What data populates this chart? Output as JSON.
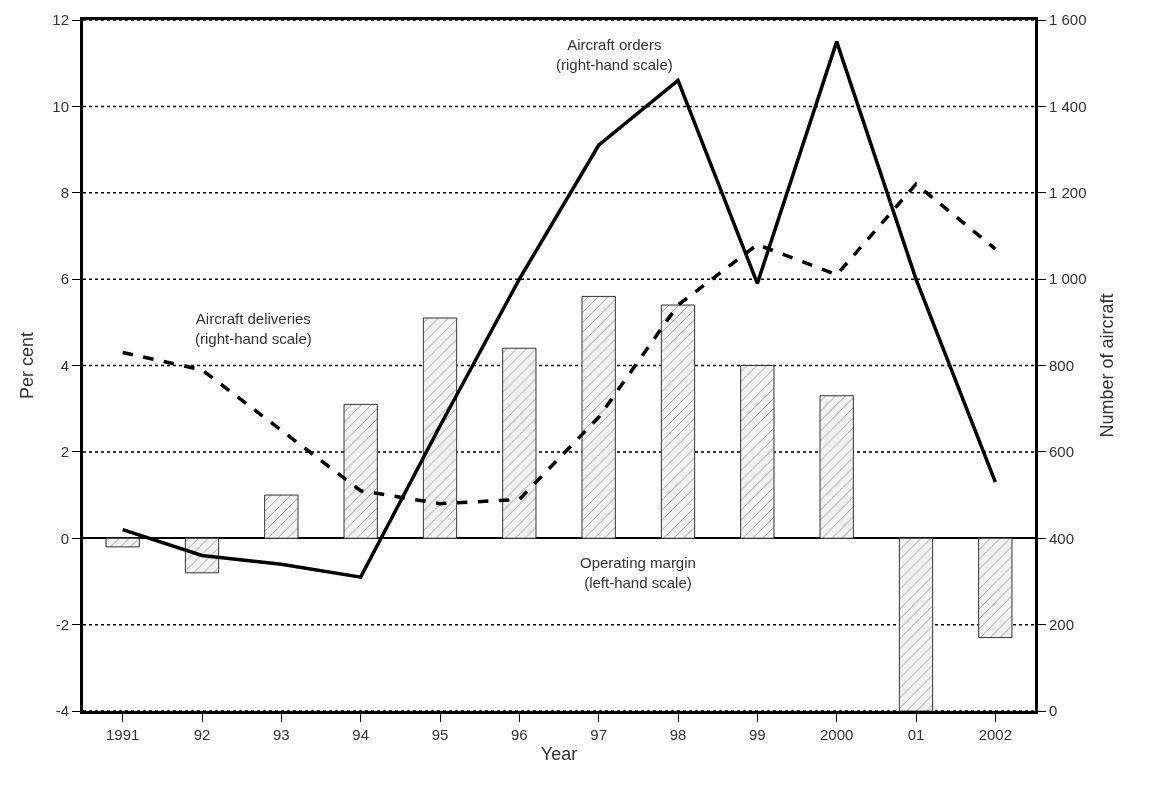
{
  "chart_data": {
    "type": "bar",
    "xlabel": "Year",
    "ylabel": "Per cent",
    "y2label": "Number of aircraft",
    "categories": [
      "1991",
      "92",
      "93",
      "94",
      "95",
      "96",
      "97",
      "98",
      "99",
      "2000",
      "01",
      "2002"
    ],
    "series": [
      {
        "name": "Operating margin\n(left-hand scale)",
        "color": "#333333",
        "values": [
          -0.2,
          -0.8,
          1.0,
          3.1,
          5.1,
          4.4,
          5.6,
          5.4,
          4.0,
          3.3,
          -4.0,
          -2.3
        ]
      },
      {
        "name": "Aircraft orders\n(right-hand scale)",
        "type": "line",
        "axis": "y2",
        "color": "#000000",
        "line_style": "solid",
        "values": [
          420,
          360,
          340,
          310,
          660,
          1000,
          1310,
          1460,
          990,
          1550,
          1000,
          530
        ]
      },
      {
        "name": "Aircraft deliveries\n(right-hand scale)",
        "type": "line",
        "axis": "y2",
        "color": "#000000",
        "line_style": "dashed",
        "values": [
          830,
          790,
          650,
          510,
          480,
          490,
          680,
          940,
          1080,
          1010,
          1220,
          1070
        ]
      }
    ],
    "ylim": [
      -4,
      12
    ],
    "yticks": [
      -4,
      -2,
      0,
      2,
      4,
      6,
      8,
      10,
      12
    ],
    "y2lim": [
      0,
      1600
    ],
    "y2ticks": [
      0,
      200,
      400,
      600,
      800,
      {
        "value": 1000,
        "label": "1 000"
      },
      {
        "value": 1200,
        "label": "1 200"
      },
      {
        "value": 1400,
        "label": "1 400"
      },
      {
        "value": 1600,
        "label": "1 600"
      }
    ],
    "grid": "y",
    "legend": false,
    "marker": "none"
  }
}
